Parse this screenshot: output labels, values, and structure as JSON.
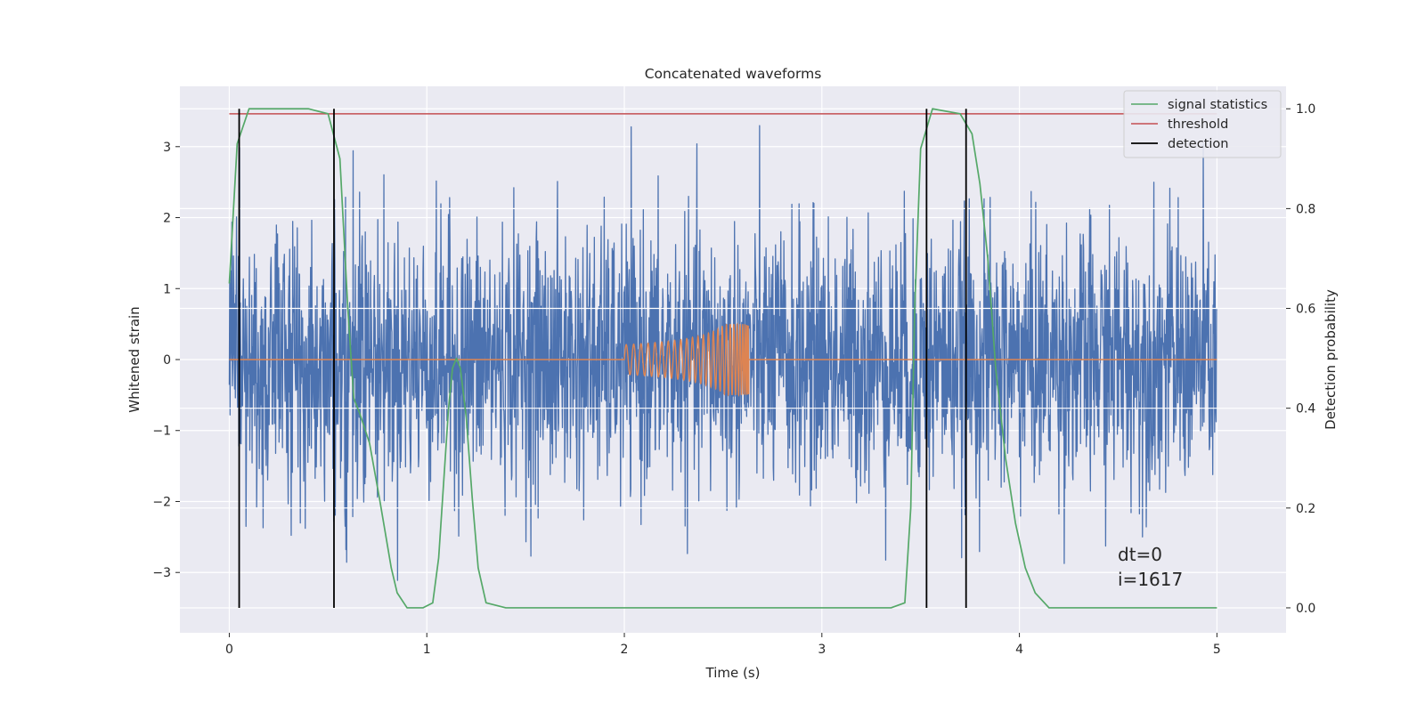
{
  "chart_data": {
    "type": "line",
    "title": "Concatenated waveforms",
    "xlabel": "Time (s)",
    "ylabel": "Whitened strain",
    "y2label": "Detection probability",
    "xlim": [
      -0.25,
      5.35
    ],
    "ylim": [
      -3.85,
      3.85
    ],
    "y2lim": [
      -0.05,
      1.045
    ],
    "xticks": [
      0,
      1,
      2,
      3,
      4,
      5
    ],
    "yticks": [
      -3,
      -2,
      -1,
      0,
      1,
      2,
      3
    ],
    "y2ticks": [
      0.0,
      0.2,
      0.4,
      0.6,
      0.8,
      1.0
    ],
    "grid": true,
    "legend_position": "top-right",
    "legend": [
      {
        "label": "signal statistics",
        "color": "#55a868"
      },
      {
        "label": "threshold",
        "color": "#c44e52"
      },
      {
        "label": "detection",
        "color": "#000000"
      }
    ],
    "series": [
      {
        "name": "",
        "kind": "noise",
        "axis": "left",
        "color": "#4c72b0",
        "x_range": [
          0,
          5
        ]
      },
      {
        "name": "",
        "kind": "chirp",
        "axis": "left",
        "color": "#dd8452",
        "x_range": [
          0,
          5
        ],
        "chirp_start": 2.0,
        "chirp_end": 2.63,
        "chirp_peak": 0.5
      },
      {
        "name": "signal statistics",
        "axis": "right",
        "color": "#55a868",
        "x": [
          0,
          0.04,
          0.1,
          0.4,
          0.5,
          0.56,
          0.6,
          0.63,
          0.66,
          0.71,
          0.76,
          0.82,
          0.85,
          0.9,
          0.98,
          1.03,
          1.06,
          1.09,
          1.11,
          1.13,
          1.15,
          1.17,
          1.2,
          1.23,
          1.26,
          1.3,
          1.4,
          2.0,
          3.0,
          3.35,
          3.42,
          3.45,
          3.47,
          3.5,
          3.56,
          3.7,
          3.76,
          3.8,
          3.84,
          3.88,
          3.93,
          3.98,
          4.03,
          4.08,
          4.15,
          4.3,
          5.0
        ],
        "y": [
          0.65,
          0.93,
          1.0,
          1.0,
          0.99,
          0.9,
          0.6,
          0.42,
          0.39,
          0.33,
          0.22,
          0.08,
          0.03,
          0.0,
          0.0,
          0.01,
          0.1,
          0.28,
          0.4,
          0.48,
          0.5,
          0.48,
          0.38,
          0.22,
          0.08,
          0.01,
          0.0,
          0.0,
          0.0,
          0.0,
          0.01,
          0.2,
          0.6,
          0.92,
          1.0,
          0.99,
          0.95,
          0.85,
          0.7,
          0.48,
          0.3,
          0.17,
          0.08,
          0.03,
          0.0,
          0.0,
          0.0
        ]
      },
      {
        "name": "threshold",
        "axis": "right",
        "color": "#c44e52",
        "x": [
          0,
          5
        ],
        "y": [
          0.99,
          0.99
        ]
      }
    ],
    "detections": [
      0.05,
      0.53,
      3.53,
      3.73
    ],
    "annotations": [
      "dt=0",
      "i=1617"
    ]
  }
}
